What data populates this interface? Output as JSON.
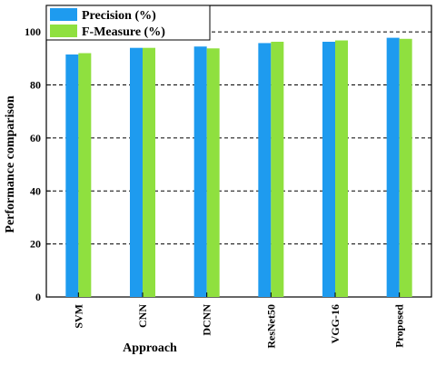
{
  "chart_data": {
    "type": "bar",
    "categories": [
      "SVM",
      "CNN",
      "DCNN",
      "ResNet50",
      "VGG-16",
      "Proposed"
    ],
    "series": [
      {
        "name": "Precision (%)",
        "values": [
          91.5,
          94.0,
          94.5,
          95.8,
          96.3,
          97.8
        ],
        "color": "#1e9bef"
      },
      {
        "name": "F-Measure (%)",
        "values": [
          92.0,
          94.0,
          93.8,
          96.3,
          96.8,
          97.4
        ],
        "color": "#8fe03f"
      }
    ],
    "xlabel": "Approach",
    "ylabel": "Performance comparison",
    "ylim": [
      0,
      100
    ],
    "yticks": [
      0,
      20,
      40,
      60,
      80,
      100
    ],
    "grid": "horizontal-dashed",
    "legend_position": "top-left"
  }
}
